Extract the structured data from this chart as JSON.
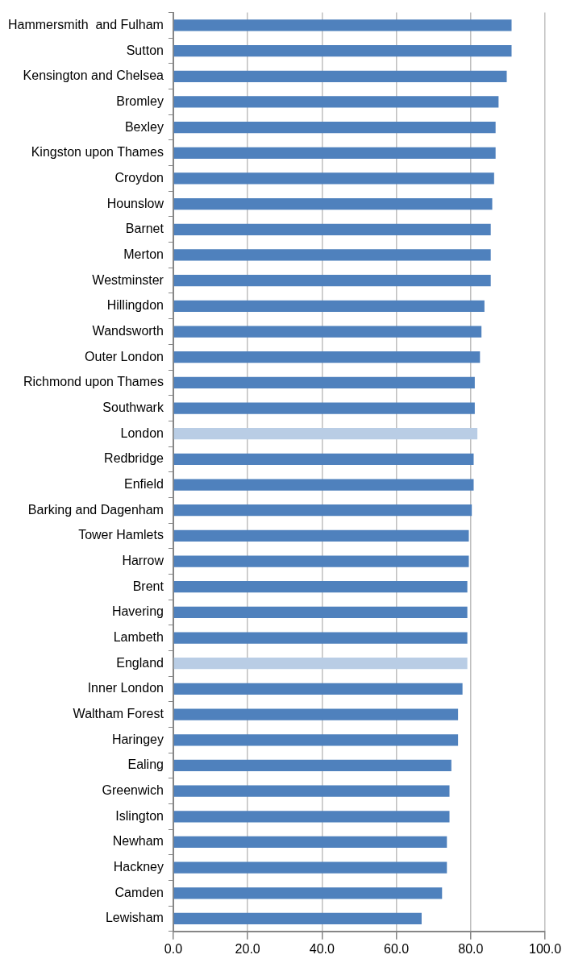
{
  "chart_data": {
    "type": "bar",
    "orientation": "horizontal",
    "categories": [
      "Hammersmith  and Fulham",
      "Sutton",
      "Kensington and Chelsea",
      "Bromley",
      "Bexley",
      "Kingston upon Thames",
      "Croydon",
      "Hounslow",
      "Barnet",
      "Merton",
      "Westminster",
      "Hillingdon",
      "Wandsworth",
      "Outer London",
      "Richmond upon Thames",
      "Southwark",
      "London",
      "Redbridge",
      "Enfield",
      "Barking and Dagenham",
      "Tower Hamlets",
      "Harrow",
      "Brent",
      "Havering",
      "Lambeth",
      "England",
      "Inner London",
      "Waltham Forest",
      "Haringey",
      "Ealing",
      "Greenwich",
      "Islington",
      "Newham",
      "Hackney",
      "Camden",
      "Lewisham"
    ],
    "values": [
      91.0,
      91.0,
      89.7,
      87.5,
      86.7,
      86.7,
      86.3,
      85.8,
      85.4,
      85.4,
      85.4,
      83.7,
      82.9,
      82.5,
      81.1,
      81.1,
      81.8,
      80.8,
      80.8,
      80.3,
      79.5,
      79.5,
      79.1,
      79.1,
      79.1,
      79.1,
      77.8,
      76.6,
      76.6,
      74.8,
      74.3,
      74.3,
      73.6,
      73.6,
      72.3,
      66.8
    ],
    "colors": [
      "#4f81bd",
      "#4f81bd",
      "#4f81bd",
      "#4f81bd",
      "#4f81bd",
      "#4f81bd",
      "#4f81bd",
      "#4f81bd",
      "#4f81bd",
      "#4f81bd",
      "#4f81bd",
      "#4f81bd",
      "#4f81bd",
      "#4f81bd",
      "#4f81bd",
      "#4f81bd",
      "#b9cde5",
      "#4f81bd",
      "#4f81bd",
      "#4f81bd",
      "#4f81bd",
      "#4f81bd",
      "#4f81bd",
      "#4f81bd",
      "#4f81bd",
      "#b9cde5",
      "#4f81bd",
      "#4f81bd",
      "#4f81bd",
      "#4f81bd",
      "#4f81bd",
      "#4f81bd",
      "#4f81bd",
      "#4f81bd",
      "#4f81bd",
      "#4f81bd"
    ],
    "xlim": [
      0,
      100
    ],
    "xticks": [
      {
        "value": 0,
        "label": "0.0"
      },
      {
        "value": 20,
        "label": "20.0"
      },
      {
        "value": 40,
        "label": "40.0"
      },
      {
        "value": 60,
        "label": "60.0"
      },
      {
        "value": 80,
        "label": "80.0"
      },
      {
        "value": 100,
        "label": "100.0"
      }
    ],
    "grid": "x",
    "legend": false
  }
}
